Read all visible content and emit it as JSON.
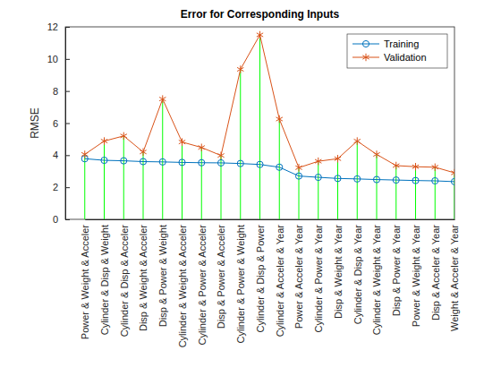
{
  "chart_data": {
    "type": "line",
    "title": "Error for Corresponding Inputs",
    "ylabel": "RMSE",
    "categories": [
      "Power & Weight & Acceler",
      "Cylinder & Disp & Weight",
      "Cylinder & Disp & Acceler",
      "Disp & Weight & Acceler",
      "Disp & Power & Weight",
      "Cylinder & Weight & Acceler",
      "Cylinder & Power & Acceler",
      "Disp & Power & Acceler",
      "Cylinder & Power & Weight",
      "Cylinder & Disp & Power",
      "Cylinder & Acceler & Year",
      "Power & Acceler & Year",
      "Cylinder & Power & Year",
      "Disp & Weight & Year",
      "Cylinder & Disp & Year",
      "Cylinder & Weight & Year",
      "Disp & Power & Year",
      "Power & Weight & Year",
      "Disp & Acceler & Year",
      "Weight & Acceler & Year"
    ],
    "series": [
      {
        "name": "Training",
        "color": "#0072bd",
        "marker": "circle",
        "values": [
          3.78,
          3.68,
          3.65,
          3.6,
          3.58,
          3.55,
          3.53,
          3.52,
          3.48,
          3.42,
          3.25,
          2.7,
          2.62,
          2.55,
          2.52,
          2.48,
          2.45,
          2.42,
          2.4,
          2.35
        ]
      },
      {
        "name": "Validation",
        "color": "#d95319",
        "marker": "asterisk",
        "values": [
          4.05,
          4.88,
          5.2,
          4.2,
          7.5,
          4.82,
          4.48,
          3.98,
          9.35,
          11.5,
          6.25,
          3.22,
          3.62,
          3.78,
          4.88,
          4.05,
          3.35,
          3.28,
          3.25,
          2.9
        ]
      }
    ],
    "ylim": [
      0,
      12
    ],
    "yticks": [
      0,
      2,
      4,
      6,
      8,
      10,
      12
    ],
    "grid": false,
    "legend": "top-right"
  }
}
